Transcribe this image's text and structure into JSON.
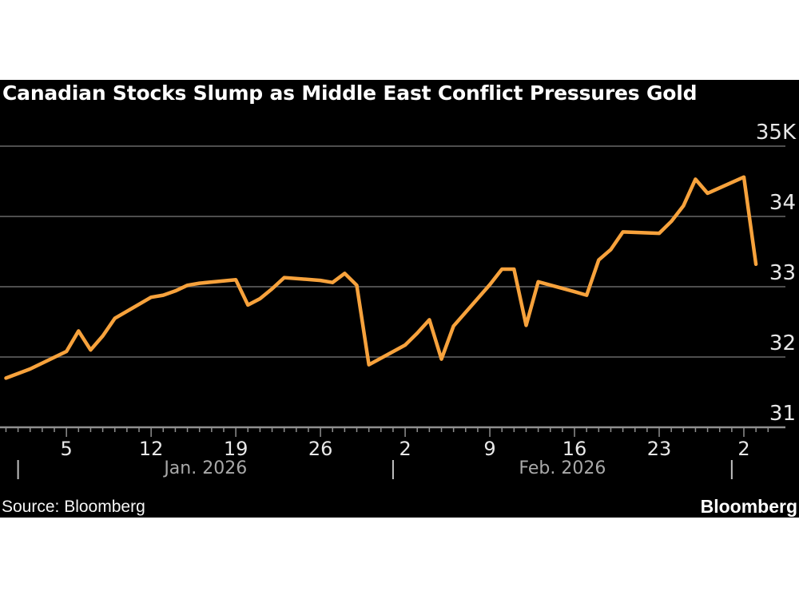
{
  "title": "Canadian Stocks Slump as Middle East Conflict Pressures Gold",
  "footer": {
    "source": "Source: Bloomberg",
    "brand": "Bloomberg"
  },
  "colors": {
    "page_background": "#FFFFFF",
    "card_background": "#000000",
    "line": "#F7A23C",
    "gridline": "#4E4E4E",
    "axis_line": "#8F8F8F",
    "tick_mark": "#8F8F8F",
    "axis_label": "#E8E8E8",
    "month_label": "#A9A9A9",
    "month_separator": "#C0C0C0",
    "title_text": "#FFFFFF"
  },
  "chart_data": {
    "type": "line",
    "title": "Canadian Stocks Slump as Middle East Conflict Pressures Gold",
    "xlabel": "",
    "ylabel": "",
    "unit": "thousands (K)",
    "ylim": [
      31,
      35
    ],
    "grid": "horizontal",
    "legend": "none",
    "yticks": [
      {
        "value": 35,
        "label": "35K"
      },
      {
        "value": 34,
        "label": "34"
      },
      {
        "value": 33,
        "label": "33"
      },
      {
        "value": 32,
        "label": "32"
      },
      {
        "value": 31,
        "label": "31"
      }
    ],
    "xticks": [
      {
        "date": "2026-01-05",
        "label": "5"
      },
      {
        "date": "2026-01-12",
        "label": "12"
      },
      {
        "date": "2026-01-19",
        "label": "19"
      },
      {
        "date": "2026-01-26",
        "label": "26"
      },
      {
        "date": "2026-02-02",
        "label": "2"
      },
      {
        "date": "2026-02-09",
        "label": "9"
      },
      {
        "date": "2026-02-16",
        "label": "16"
      },
      {
        "date": "2026-02-23",
        "label": "23"
      },
      {
        "date": "2026-03-02",
        "label": "2"
      }
    ],
    "minor_tick_interval_days": 1,
    "axis_range": [
      "2025-12-31",
      "2026-03-04"
    ],
    "month_separators": [
      "2026-01-01",
      "2026-02-01",
      "2026-03-01"
    ],
    "month_labels": [
      "Jan. 2026",
      "Feb. 2026"
    ],
    "points": [
      [
        "2025-12-31",
        31.7
      ],
      [
        "2026-01-02",
        31.83
      ],
      [
        "2026-01-05",
        32.08
      ],
      [
        "2026-01-06",
        32.37
      ],
      [
        "2026-01-07",
        32.1
      ],
      [
        "2026-01-08",
        32.3
      ],
      [
        "2026-01-09",
        32.55
      ],
      [
        "2026-01-12",
        32.85
      ],
      [
        "2026-01-13",
        32.88
      ],
      [
        "2026-01-14",
        32.94
      ],
      [
        "2026-01-15",
        33.02
      ],
      [
        "2026-01-16",
        33.05
      ],
      [
        "2026-01-19",
        33.1
      ],
      [
        "2026-01-20",
        32.74
      ],
      [
        "2026-01-21",
        32.83
      ],
      [
        "2026-01-22",
        32.97
      ],
      [
        "2026-01-23",
        33.13
      ],
      [
        "2026-01-26",
        33.09
      ],
      [
        "2026-01-27",
        33.06
      ],
      [
        "2026-01-28",
        33.19
      ],
      [
        "2026-01-29",
        33.02
      ],
      [
        "2026-01-30",
        31.89
      ],
      [
        "2026-02-02",
        32.17
      ],
      [
        "2026-02-03",
        32.34
      ],
      [
        "2026-02-04",
        32.53
      ],
      [
        "2026-02-05",
        31.97
      ],
      [
        "2026-02-06",
        32.44
      ],
      [
        "2026-02-09",
        33.03
      ],
      [
        "2026-02-10",
        33.25
      ],
      [
        "2026-02-11",
        33.25
      ],
      [
        "2026-02-12",
        32.45
      ],
      [
        "2026-02-13",
        33.07
      ],
      [
        "2026-02-16",
        32.93
      ],
      [
        "2026-02-17",
        32.88
      ],
      [
        "2026-02-18",
        33.38
      ],
      [
        "2026-02-19",
        33.53
      ],
      [
        "2026-02-20",
        33.78
      ],
      [
        "2026-02-23",
        33.76
      ],
      [
        "2026-02-24",
        33.93
      ],
      [
        "2026-02-25",
        34.15
      ],
      [
        "2026-02-26",
        34.53
      ],
      [
        "2026-02-27",
        34.33
      ],
      [
        "2026-03-02",
        34.56
      ],
      [
        "2026-03-03",
        33.32
      ]
    ]
  }
}
